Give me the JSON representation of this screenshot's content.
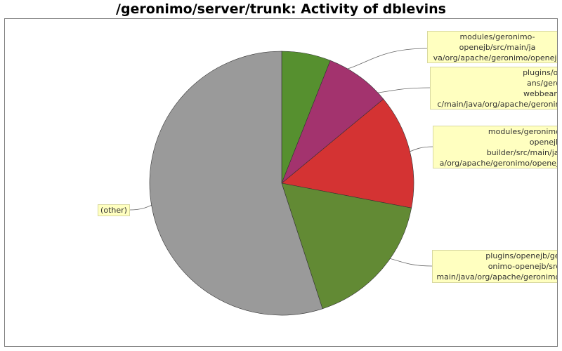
{
  "title": "/geronimo/server/trunk: Activity of dblevins",
  "chart_data": {
    "type": "pie",
    "slices": [
      {
        "label": "modules/geronimo-\nopenejb/src/main/ja\nva/org/apache/geronimo/openejb",
        "value": 6,
        "color": "#56902f"
      },
      {
        "label": "plugins/ope\nans/geroni\nwebbeans-l\nc/main/java/org/apache/geronimo",
        "value": 8,
        "color": "#a3336e"
      },
      {
        "label": "modules/geronimo-\nopenejb-\nbuilder/src/main/jav\na/org/apache/geronimo/openejb",
        "value": 14,
        "color": "#d43333"
      },
      {
        "label": "plugins/openejb/ger\nonimo-openejb/src/\nmain/java/org/apache/geronimo/",
        "value": 17,
        "color": "#628a34"
      },
      {
        "label": "(other)",
        "value": 55,
        "color": "#9a9a9a"
      }
    ]
  }
}
